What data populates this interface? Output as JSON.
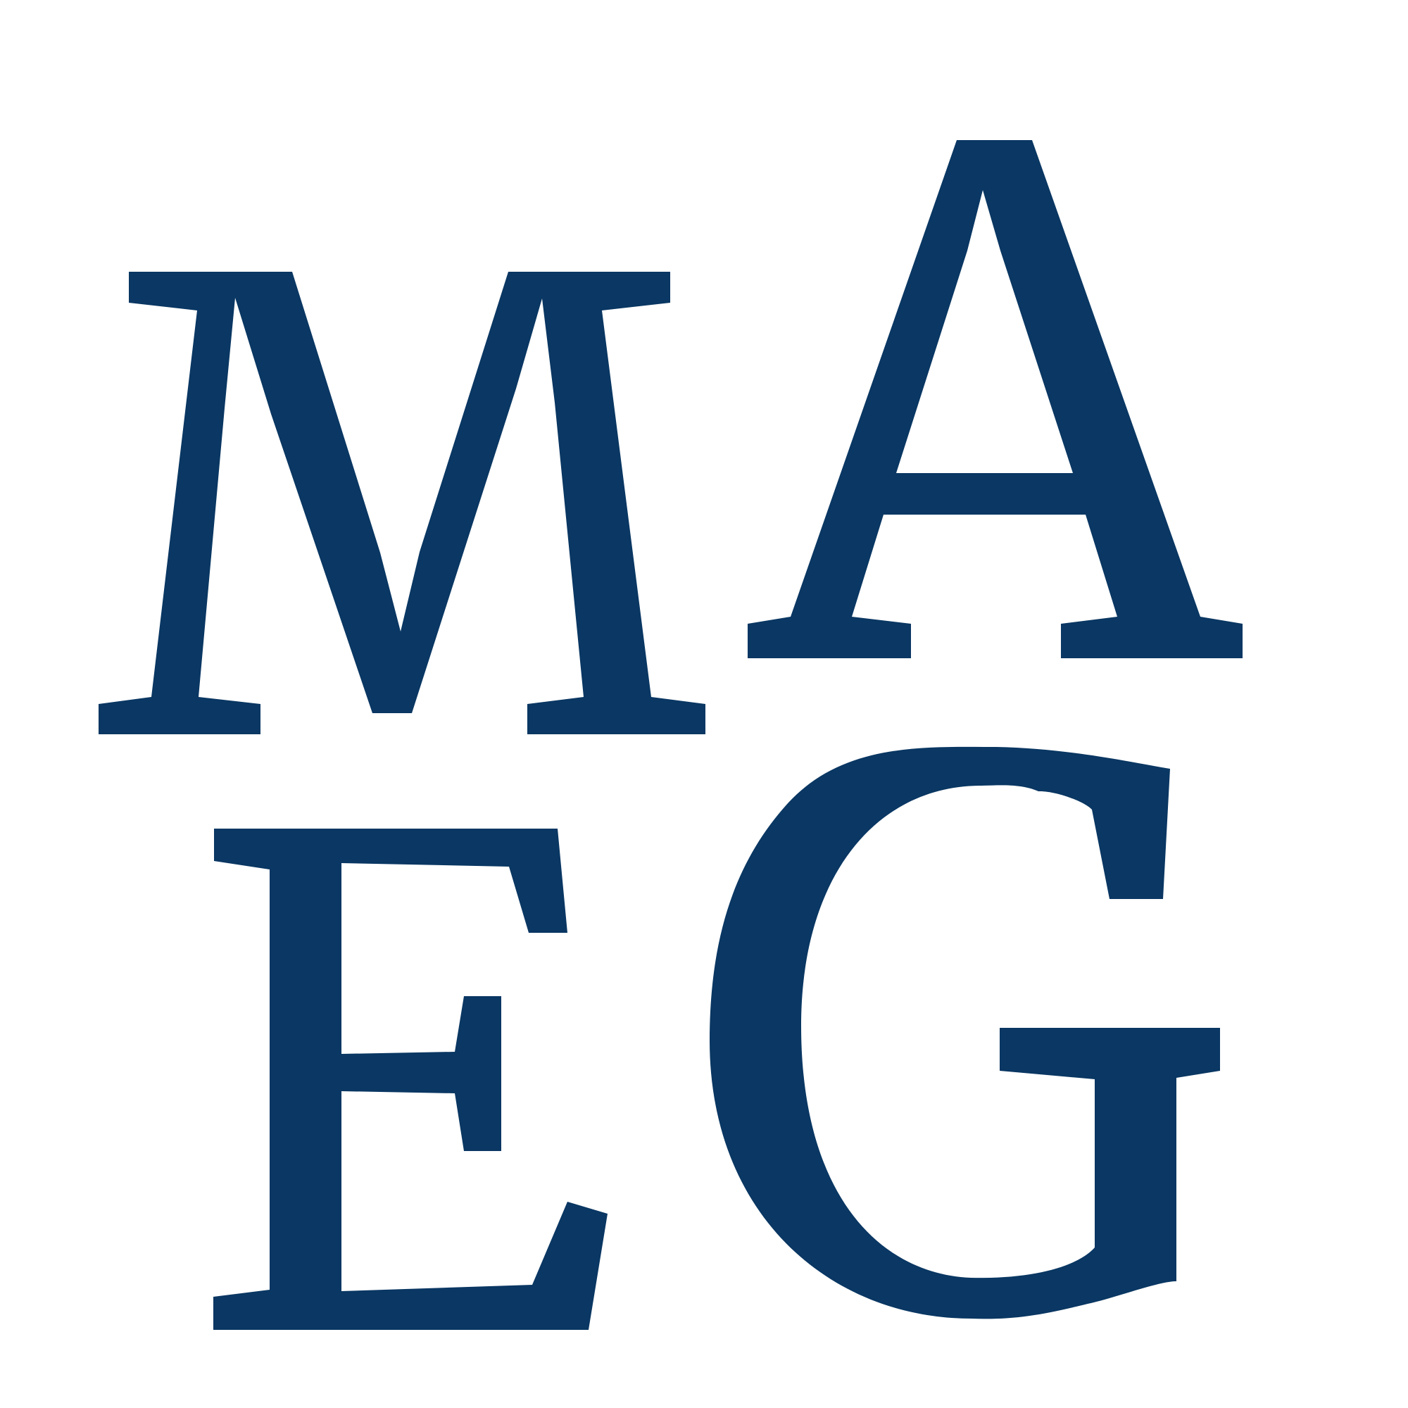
{
  "logo": {
    "lettering": [
      "M",
      "A",
      "E",
      "G"
    ],
    "rows": [
      [
        "M",
        "A"
      ],
      [
        "E",
        "G"
      ]
    ],
    "color": "#0a3763",
    "background": "#ffffff"
  }
}
